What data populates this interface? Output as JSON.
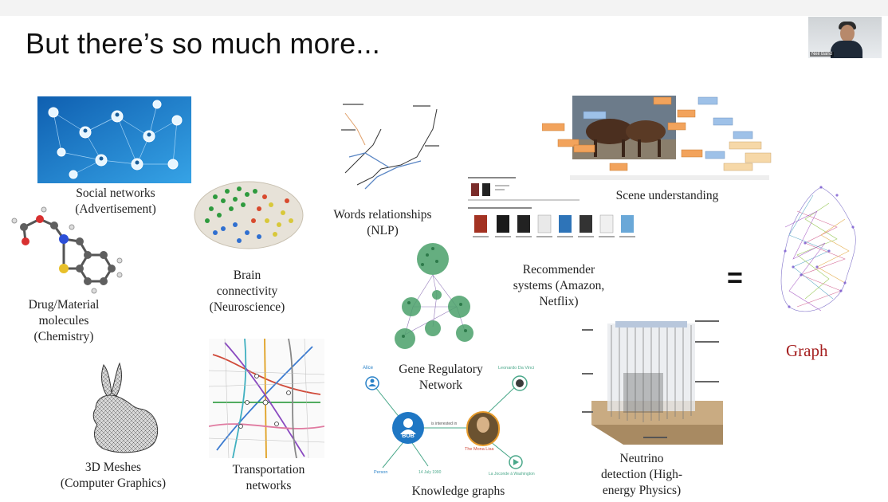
{
  "slide": {
    "title": "But there’s so much more...",
    "presenter_name": "Neil Band"
  },
  "panels": [
    {
      "label": "Social networks (Advertisement)"
    },
    {
      "label": "Drug/Material molecules (Chemistry)"
    },
    {
      "label": "Brain connectivity (Neuroscience)"
    },
    {
      "label": "Words relationships (NLP)"
    },
    {
      "label": "Scene understanding"
    },
    {
      "label": "Recommender systems (Amazon, Netflix)"
    },
    {
      "label": "Gene Regulatory Network"
    },
    {
      "label": "3D Meshes (Computer Graphics)"
    },
    {
      "label": "Transportation networks"
    },
    {
      "label": "Knowledge graphs"
    },
    {
      "label": "Neutrino detection (High-energy Physics)"
    }
  ],
  "labels": {
    "social_1": "Social networks",
    "social_2": "(Advertisement)",
    "drug_1": "Drug/Material",
    "drug_2": "molecules",
    "drug_3": "(Chemistry)",
    "brain_1": "Brain",
    "brain_2": "connectivity",
    "brain_3": "(Neuroscience)",
    "words_1": "Words relationships",
    "words_2": "(NLP)",
    "scene": "Scene understanding",
    "rec_1": "Recommender",
    "rec_2": "systems (Amazon,",
    "rec_3": "Netflix)",
    "gene_1": "Gene Regulatory",
    "gene_2": "Network",
    "mesh_1": "3D Meshes",
    "mesh_2": "(Computer Graphics)",
    "trans_1": "Transportation",
    "trans_2": "networks",
    "kg": "Knowledge graphs",
    "neu_1": "Neutrino",
    "neu_2": "detection (High-",
    "neu_3": "energy Physics)"
  },
  "equals": "=",
  "graph_label": "Graph",
  "kg_nodes": {
    "alice": "Alice",
    "bob": "BOB",
    "leonardo": "Leonardo Da Vinci",
    "mona": "The Mona Lisa",
    "person": "Person",
    "date": "14 July 1990",
    "louvre": "La Joconde à Washington",
    "interested": "is interested in"
  },
  "colors": {
    "graph_label": "#a51f1f",
    "social_bg": "#1c78c6",
    "kg_bob": "#1f77c4"
  }
}
